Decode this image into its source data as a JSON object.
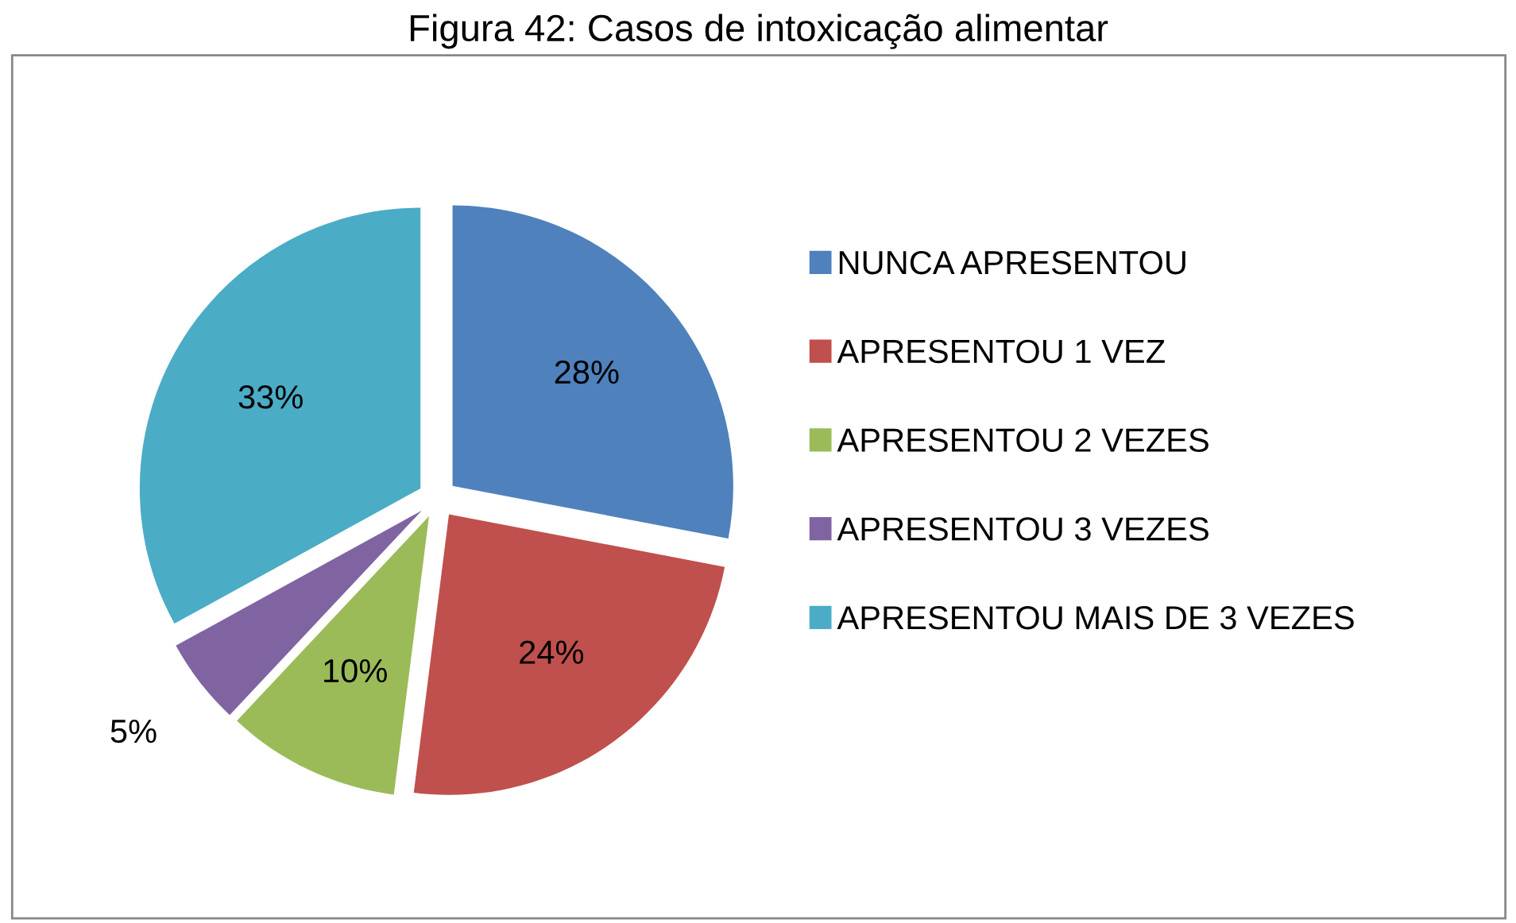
{
  "chart_data": {
    "type": "pie",
    "title": "Figura 42: Casos de intoxicação alimentar",
    "categories": [
      "NUNCA APRESENTOU",
      "APRESENTOU 1 VEZ",
      "APRESENTOU 2 VEZES",
      "APRESENTOU 3 VEZES",
      "APRESENTOU MAIS DE 3 VEZES"
    ],
    "values": [
      28,
      24,
      10,
      5,
      33
    ],
    "value_labels": [
      "28%",
      "24%",
      "10%",
      "5%",
      "33%"
    ],
    "colors": [
      "#4f81bd",
      "#c0504d",
      "#9bbb59",
      "#8064a2",
      "#4bacc6"
    ],
    "legend": "right"
  }
}
